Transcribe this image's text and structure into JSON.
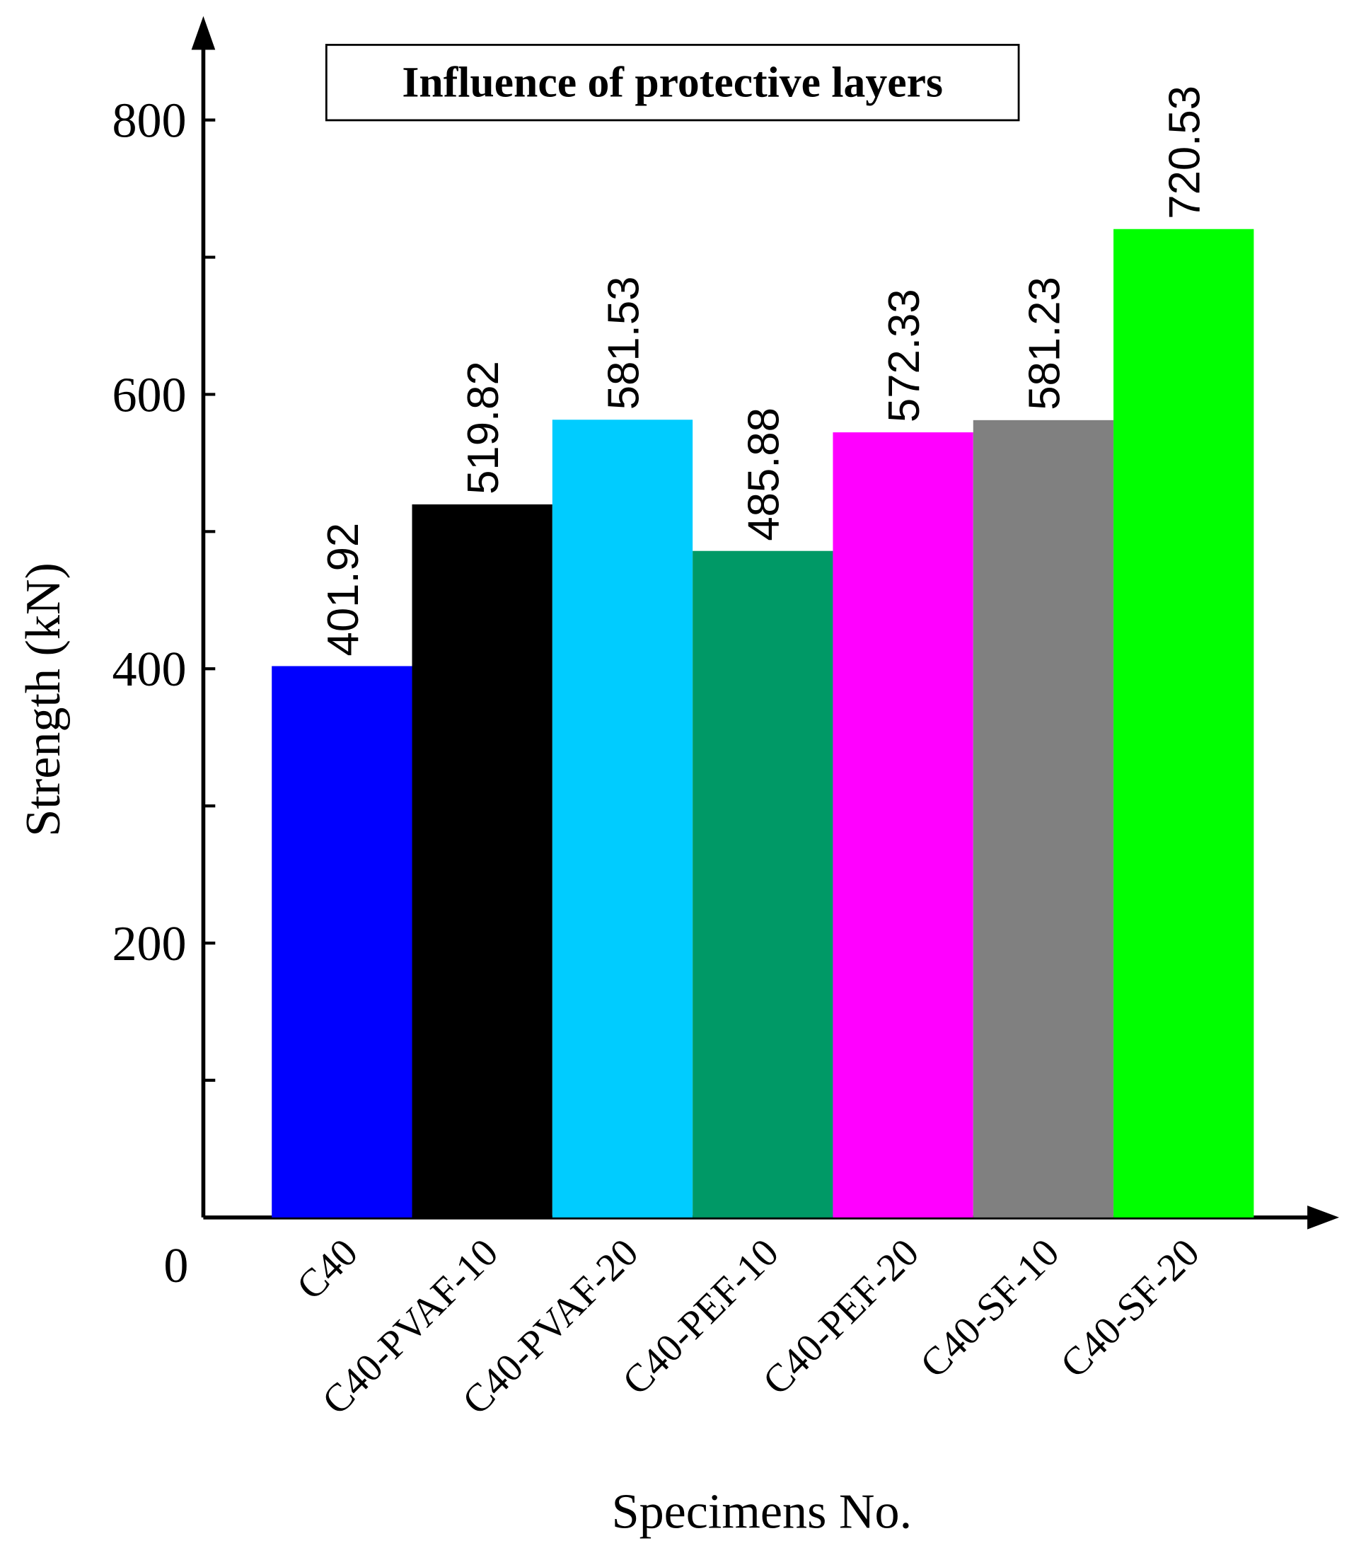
{
  "chart_data": {
    "type": "bar",
    "title": "Influence of protective layers",
    "x_label": "Specimens No.",
    "y_label": "Strength (kN)",
    "categories": [
      "C40",
      "C40-PVAF-10",
      "C40-PVAF-20",
      "C40-PEF-10",
      "C40-PEF-20",
      "C40-SF-10",
      "C40-SF-20"
    ],
    "values": [
      401.92,
      519.82,
      581.53,
      485.88,
      572.33,
      581.23,
      720.53
    ],
    "colors": [
      "#0000ff",
      "#000000",
      "#00ccff",
      "#009966",
      "#ff00ff",
      "#808080",
      "#00ff00"
    ],
    "ylim": [
      0,
      870
    ],
    "yticks": [
      0,
      200,
      400,
      600,
      800
    ],
    "minor_yticks": [
      100,
      300,
      500,
      700
    ],
    "grid": false
  }
}
